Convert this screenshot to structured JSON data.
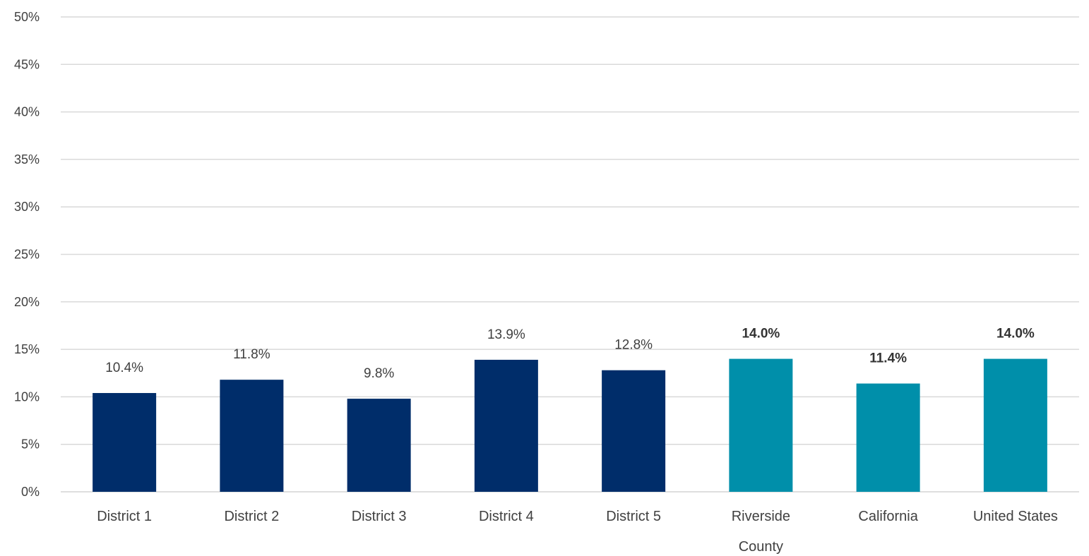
{
  "chart_data": {
    "type": "bar",
    "title": "",
    "xlabel": "",
    "ylabel": "",
    "categories": [
      [
        "District 1"
      ],
      [
        "District 2"
      ],
      [
        "District 3"
      ],
      [
        "District 4"
      ],
      [
        "District 5"
      ],
      [
        "Riverside",
        "County"
      ],
      [
        "California"
      ],
      [
        "United States"
      ]
    ],
    "values": [
      10.4,
      11.8,
      9.8,
      13.9,
      12.8,
      14.0,
      11.4,
      14.0
    ],
    "value_labels": [
      "10.4%",
      "11.8%",
      "9.8%",
      "13.9%",
      "12.8%",
      "14.0%",
      "11.4%",
      "14.0%"
    ],
    "label_bold": [
      false,
      false,
      false,
      false,
      false,
      true,
      true,
      true
    ],
    "bar_colors": [
      "#002D6A",
      "#002D6A",
      "#002D6A",
      "#002D6A",
      "#002D6A",
      "#008FAA",
      "#008FAA",
      "#008FAA"
    ],
    "ylim": [
      0,
      50
    ],
    "yticks": [
      0,
      5,
      10,
      15,
      20,
      25,
      30,
      35,
      40,
      45,
      50
    ],
    "ytick_labels": [
      "0%",
      "5%",
      "10%",
      "15%",
      "20%",
      "25%",
      "30%",
      "35%",
      "40%",
      "45%",
      "50%"
    ],
    "grid": true,
    "gridline_color": "#D9D9D9",
    "legend": "none"
  }
}
